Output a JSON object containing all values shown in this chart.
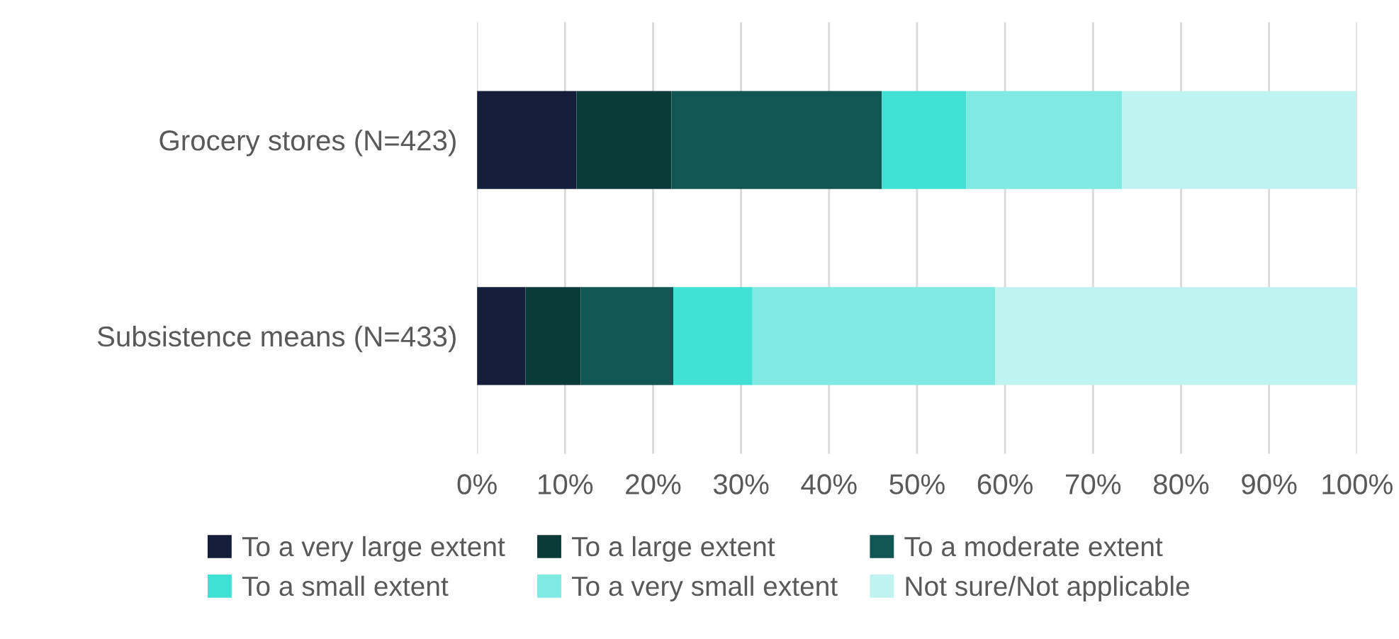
{
  "chart_data": {
    "type": "bar",
    "orientation": "horizontal",
    "stacked": true,
    "categories": [
      "Grocery stores (N=423)",
      "Subsistence means (N=433)"
    ],
    "series": [
      {
        "name": "To a very large extent",
        "color": "#141e3a",
        "values": [
          11.3,
          5.5
        ]
      },
      {
        "name": "To a large extent",
        "color": "#0b3b37",
        "values": [
          10.8,
          6.3
        ]
      },
      {
        "name": "To a moderate extent",
        "color": "#115652",
        "values": [
          23.9,
          10.5
        ]
      },
      {
        "name": "To a small extent",
        "color": "#40e0d5",
        "values": [
          9.6,
          9.0
        ]
      },
      {
        "name": "To a very small extent",
        "color": "#80e9e2",
        "values": [
          17.7,
          27.6
        ]
      },
      {
        "name": "Not sure/Not applicable",
        "color": "#bff3f0",
        "values": [
          26.6,
          41.1
        ]
      }
    ],
    "xlim": [
      0,
      100
    ],
    "xticks": [
      {
        "value": 0,
        "label": "0%"
      },
      {
        "value": 10,
        "label": "10%"
      },
      {
        "value": 20,
        "label": "20%"
      },
      {
        "value": 30,
        "label": "30%"
      },
      {
        "value": 40,
        "label": "40%"
      },
      {
        "value": 50,
        "label": "50%"
      },
      {
        "value": 60,
        "label": "60%"
      },
      {
        "value": 70,
        "label": "70%"
      },
      {
        "value": 80,
        "label": "80%"
      },
      {
        "value": 90,
        "label": "90%"
      },
      {
        "value": 100,
        "label": "100%"
      }
    ],
    "grid": "x",
    "legend": "bottom"
  }
}
